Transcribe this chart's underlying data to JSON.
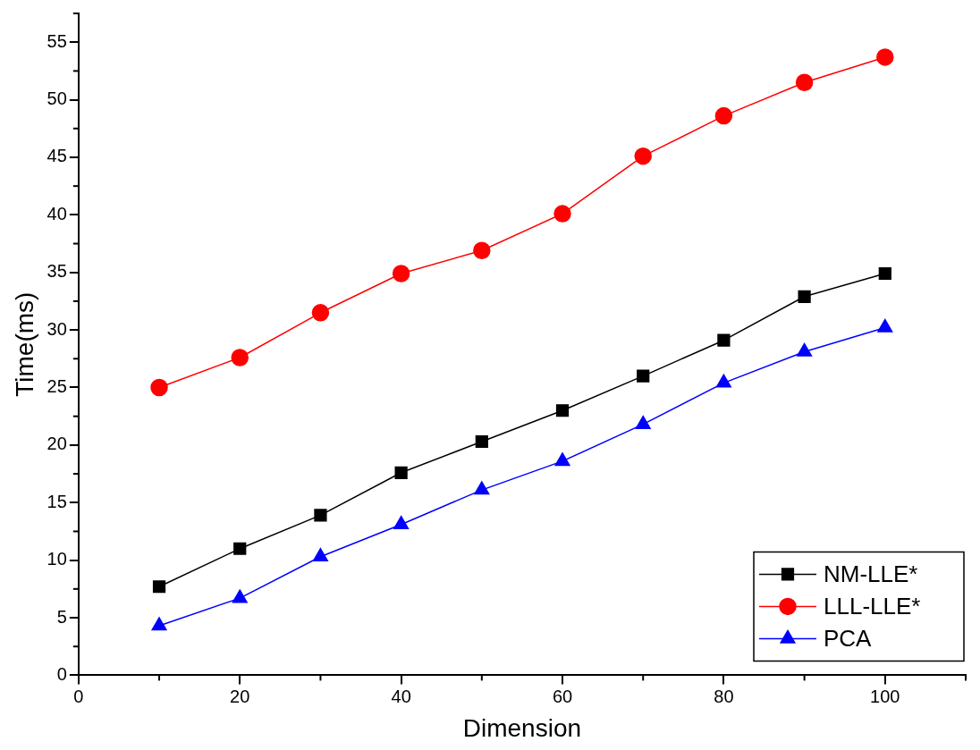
{
  "chart_data": {
    "type": "line",
    "xlabel": "Dimension",
    "ylabel": "Time(ms)",
    "x": [
      10,
      20,
      30,
      40,
      50,
      60,
      70,
      80,
      90,
      100
    ],
    "series": [
      {
        "name": "NM-LLE*",
        "color": "#000000",
        "marker": "square",
        "values": [
          7.7,
          11.0,
          13.9,
          17.6,
          20.3,
          23.0,
          26.0,
          29.1,
          32.9,
          34.9
        ]
      },
      {
        "name": "LLL-LLE*",
        "color": "#ff0000",
        "marker": "circle",
        "values": [
          25.0,
          27.6,
          31.5,
          34.9,
          36.9,
          40.1,
          45.1,
          48.6,
          51.5,
          53.7
        ]
      },
      {
        "name": "PCA",
        "color": "#0000ff",
        "marker": "triangle",
        "values": [
          4.3,
          6.7,
          10.3,
          13.1,
          16.1,
          18.6,
          21.8,
          25.4,
          28.1,
          30.2
        ]
      }
    ],
    "xlim": [
      0,
      110
    ],
    "xticks": [
      0,
      20,
      40,
      60,
      80,
      100
    ],
    "ylim": [
      0,
      57.5
    ],
    "yticks": [
      0,
      5,
      10,
      15,
      20,
      25,
      30,
      35,
      40,
      45,
      50,
      55
    ],
    "grid": false,
    "legend": "bottom right",
    "line_style": "solid"
  }
}
